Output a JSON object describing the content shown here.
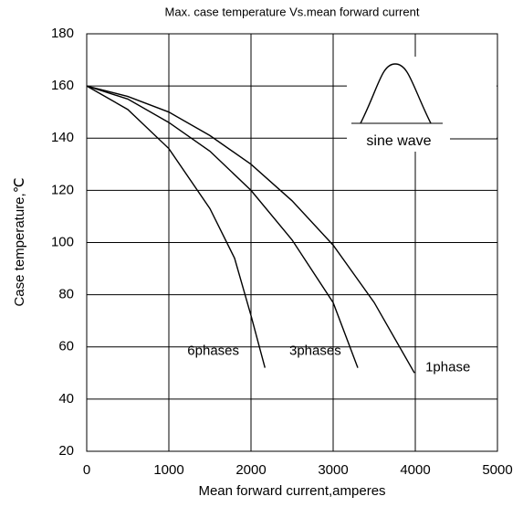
{
  "chart_data": {
    "type": "line",
    "title": "Max. case temperature Vs.mean forward current",
    "x_label": "Mean forward current,amperes",
    "y_label": "Case temperature,℃",
    "xlim": [
      0,
      5000
    ],
    "xticks": [
      0,
      1000,
      2000,
      3000,
      4000,
      5000
    ],
    "ylim": [
      20,
      180
    ],
    "yticks": [
      20,
      40,
      60,
      80,
      100,
      120,
      140,
      160,
      180
    ],
    "grid": true,
    "inset_label": "sine wave",
    "series": [
      {
        "name": "1phase",
        "color": "#000000",
        "x": [
          0,
          500,
          1000,
          1500,
          2000,
          2500,
          3000,
          3500,
          3990
        ],
        "values": [
          160,
          156,
          150,
          141,
          130,
          116,
          99,
          77,
          50
        ]
      },
      {
        "name": "3phases",
        "color": "#000000",
        "x": [
          0,
          500,
          1000,
          1500,
          2000,
          2500,
          3000,
          3300
        ],
        "values": [
          160,
          155,
          146,
          135,
          120,
          101,
          77,
          52
        ]
      },
      {
        "name": "6phases",
        "color": "#000000",
        "x": [
          0,
          500,
          1000,
          1500,
          1800,
          2000,
          2170
        ],
        "values": [
          160,
          151,
          136,
          113,
          94,
          72,
          52
        ]
      }
    ]
  }
}
